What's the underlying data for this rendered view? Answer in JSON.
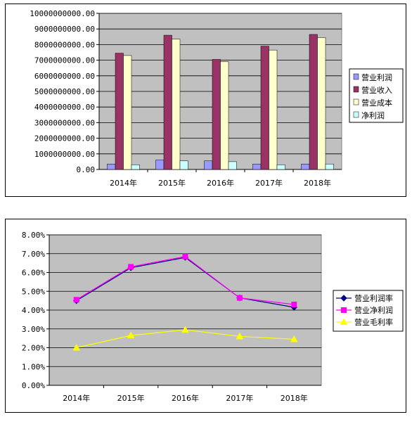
{
  "chart_data": [
    {
      "type": "bar",
      "categories": [
        "2014年",
        "2015年",
        "2016年",
        "2017年",
        "2018年"
      ],
      "series": [
        {
          "name": "营业利润",
          "color": "#9999ff",
          "values": [
            350000000,
            600000000,
            550000000,
            350000000,
            350000000
          ]
        },
        {
          "name": "营业收入",
          "color": "#993366",
          "values": [
            7450000000,
            8600000000,
            7050000000,
            7900000000,
            8650000000
          ]
        },
        {
          "name": "营业成本",
          "color": "#ffffcc",
          "values": [
            7300000000,
            8350000000,
            6900000000,
            7650000000,
            8450000000
          ]
        },
        {
          "name": "净利润",
          "color": "#ccffff",
          "values": [
            300000000,
            550000000,
            500000000,
            300000000,
            350000000
          ]
        }
      ],
      "yticks": [
        "0.00",
        "1000000000.00",
        "2000000000.00",
        "3000000000.00",
        "4000000000.00",
        "5000000000.00",
        "6000000000.00",
        "7000000000.00",
        "8000000000.00",
        "9000000000.00",
        "10000000000.00"
      ],
      "ylim": [
        0,
        10000000000
      ],
      "grid": true,
      "plot_background": "#c0c0c0",
      "legend": "right"
    },
    {
      "type": "line",
      "categories": [
        "2014年",
        "2015年",
        "2016年",
        "2017年",
        "2018年"
      ],
      "series": [
        {
          "name": "营业利润率",
          "color": "#000080",
          "marker": "diamond",
          "values": [
            4.5,
            6.25,
            6.8,
            4.65,
            4.15
          ]
        },
        {
          "name": "营业净利润",
          "color": "#ff00ff",
          "marker": "square",
          "values": [
            4.55,
            6.3,
            6.85,
            4.65,
            4.3
          ]
        },
        {
          "name": "营业毛利率",
          "color": "#ffff00",
          "marker": "triangle",
          "values": [
            2.0,
            2.65,
            2.95,
            2.6,
            2.45
          ]
        }
      ],
      "yticks": [
        "0.00%",
        "1.00%",
        "2.00%",
        "3.00%",
        "4.00%",
        "5.00%",
        "6.00%",
        "7.00%",
        "8.00%"
      ],
      "ylim": [
        0,
        8
      ],
      "grid": true,
      "plot_background": "#c0c0c0",
      "legend": "right"
    }
  ]
}
